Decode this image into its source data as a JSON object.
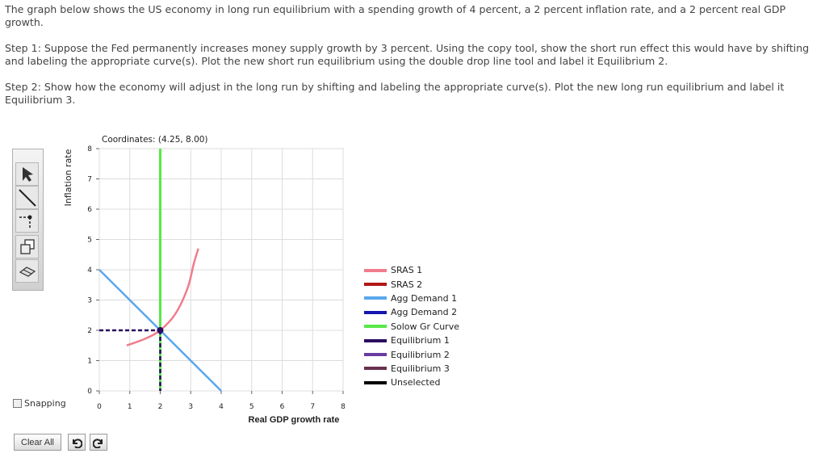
{
  "instructions": {
    "p1": "The graph below shows the US economy in long run equilibrium with a spending growth of 4 percent, a 2 percent inflation rate, and a 2 percent real GDP growth.",
    "p2": "Step 1: Suppose the Fed permanently increases money supply growth by 3 percent. Using the copy tool, show the short run effect this would have by shifting and labeling the appropriate curve(s). Plot the new short run equilibrium using the double drop line tool and label it Equilibrium 2.",
    "p3": "Step 2: Show how the economy will adjust in the long run by shifting and labeling the appropriate curve(s). Plot the new long run equilibrium and label it Equilibrium 3."
  },
  "coordinates_readout": "Coordinates: (4.25, 8.00)",
  "tools": [
    {
      "name": "arrow-tool",
      "icon": "pointer-arrow-icon"
    },
    {
      "name": "line-tool",
      "icon": "line-icon"
    },
    {
      "name": "double-drop-line-tool",
      "icon": "drop-line-icon"
    },
    {
      "name": "copy-tool",
      "icon": "copy-icon"
    },
    {
      "name": "eraser-tool",
      "icon": "eraser-icon"
    }
  ],
  "snapping": {
    "label": "Snapping",
    "checked": false
  },
  "buttons": {
    "clear": "Clear All",
    "undo_icon": "undo-icon",
    "redo_icon": "redo-icon"
  },
  "legend": [
    {
      "label": "SRAS 1",
      "color": "#f07c8c"
    },
    {
      "label": "SRAS 2",
      "color": "#b01818"
    },
    {
      "label": "Agg Demand 1",
      "color": "#5aa7ee"
    },
    {
      "label": "Agg Demand 2",
      "color": "#1515b0"
    },
    {
      "label": "Solow Gr Curve",
      "color": "#58e848"
    },
    {
      "label": "Equilibrium 1",
      "color": "#2a0a60"
    },
    {
      "label": "Equilibrium 2",
      "color": "#6a3aa0"
    },
    {
      "label": "Equilibrium 3",
      "color": "#6a3050"
    },
    {
      "label": "Unselected",
      "color": "#000000"
    }
  ],
  "chart_data": {
    "type": "line",
    "xlabel": "Real GDP growth rate",
    "ylabel": "Inflation rate",
    "xlim": [
      0,
      8
    ],
    "ylim": [
      0,
      8
    ],
    "xticks": [
      0,
      1,
      2,
      3,
      4,
      5,
      6,
      7,
      8
    ],
    "yticks": [
      0,
      1,
      2,
      3,
      4,
      5,
      6,
      7,
      8
    ],
    "grid": true,
    "series": [
      {
        "name": "SRAS 1",
        "color": "#f07c8c",
        "points": [
          [
            0.9,
            1.5
          ],
          [
            1.5,
            1.72
          ],
          [
            2.0,
            2.0
          ],
          [
            2.5,
            2.55
          ],
          [
            2.9,
            3.4
          ],
          [
            3.1,
            4.2
          ],
          [
            3.25,
            4.7
          ]
        ]
      },
      {
        "name": "Agg Demand 1",
        "color": "#5aa7ee",
        "points": [
          [
            0,
            4
          ],
          [
            4,
            0
          ]
        ]
      },
      {
        "name": "Solow Gr Curve",
        "color": "#58e848",
        "points": [
          [
            2,
            0
          ],
          [
            2,
            8
          ]
        ]
      }
    ],
    "equilibria": [
      {
        "name": "Equilibrium 1",
        "x": 2,
        "y": 2,
        "color": "#2a0a60"
      }
    ]
  }
}
